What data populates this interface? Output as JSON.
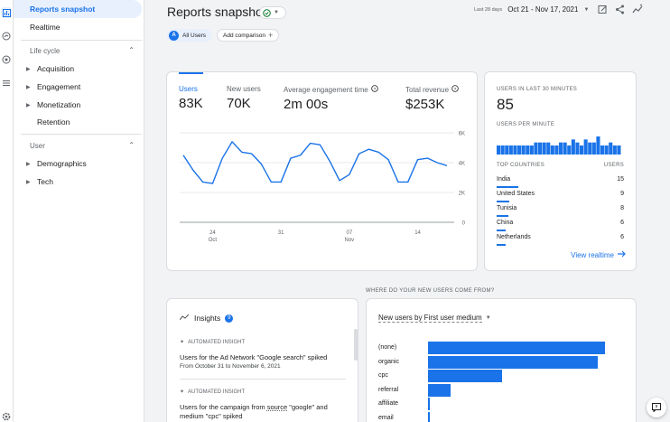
{
  "nav": {
    "reports_snapshot": "Reports snapshot",
    "realtime": "Realtime",
    "life_cycle": "Life cycle",
    "acquisition": "Acquisition",
    "engagement": "Engagement",
    "monetization": "Monetization",
    "retention": "Retention",
    "user": "User",
    "demographics": "Demographics",
    "tech": "Tech"
  },
  "header": {
    "title": "Reports snapshot",
    "date_label": "Last 28 days",
    "date_range": "Oct 21 - Nov 17, 2021"
  },
  "chips": {
    "avatar_letter": "A",
    "all_users": "All Users",
    "add_comparison": "Add comparison"
  },
  "metrics": [
    {
      "label": "Users",
      "value": "83K"
    },
    {
      "label": "New users",
      "value": "70K"
    },
    {
      "label": "Average engagement time",
      "value": "2m 00s"
    },
    {
      "label": "Total revenue",
      "value": "$253K"
    }
  ],
  "chart_data": {
    "type": "line",
    "x": [
      "Oct 21",
      "Oct 22",
      "Oct 23",
      "Oct 24",
      "Oct 25",
      "Oct 26",
      "Oct 27",
      "Oct 28",
      "Oct 29",
      "Oct 30",
      "Oct 31",
      "Nov 1",
      "Nov 2",
      "Nov 3",
      "Nov 4",
      "Nov 5",
      "Nov 6",
      "Nov 7",
      "Nov 8",
      "Nov 9",
      "Nov 10",
      "Nov 11",
      "Nov 12",
      "Nov 13",
      "Nov 14",
      "Nov 15",
      "Nov 16",
      "Nov 17"
    ],
    "series": [
      {
        "values": [
          4500,
          3500,
          2700,
          2600,
          4300,
          5400,
          4700,
          4600,
          3900,
          2700,
          2700,
          4300,
          4500,
          5300,
          5200,
          4100,
          2800,
          3200,
          4600,
          4900,
          4700,
          4200,
          2700,
          2700,
          4200,
          4300,
          4000,
          3800
        ]
      }
    ],
    "y_ticks": [
      "6K",
      "4K",
      "2K",
      "0"
    ],
    "x_ticks": [
      {
        "day": "24",
        "month": "Oct"
      },
      {
        "day": "31",
        "month": ""
      },
      {
        "day": "07",
        "month": "Nov"
      },
      {
        "day": "14",
        "month": ""
      }
    ],
    "ylim": [
      0,
      6000
    ],
    "grid": true,
    "color": "#1a73e8"
  },
  "realtime": {
    "header": "USERS IN LAST 30 MINUTES",
    "value": "85",
    "per_minute_label": "USERS PER MINUTE",
    "per_minute": [
      3,
      3,
      3,
      3,
      3,
      3,
      3,
      3,
      3,
      4,
      4,
      4,
      4,
      3,
      3,
      4,
      4,
      3,
      5,
      4,
      3,
      5,
      4,
      4,
      6,
      3,
      3,
      4,
      3,
      3
    ],
    "countries_header": "TOP COUNTRIES",
    "users_header": "USERS",
    "countries": [
      {
        "name": "India",
        "users": "15",
        "share": 1.0
      },
      {
        "name": "United States",
        "users": "9",
        "share": 0.6
      },
      {
        "name": "Tunisia",
        "users": "8",
        "share": 0.53
      },
      {
        "name": "China",
        "users": "6",
        "share": 0.4
      },
      {
        "name": "Netherlands",
        "users": "6",
        "share": 0.4
      }
    ],
    "view_link": "View realtime"
  },
  "where_title": "WHERE DO YOUR NEW USERS COME FROM?",
  "insights": {
    "title": "Insights",
    "count": "9",
    "items": [
      {
        "tag": "AUTOMATED INSIGHT",
        "line1": "Users for the Ad Network \"Google search\" spiked",
        "line2": "",
        "date": "From October 31 to November 6, 2021"
      },
      {
        "tag": "AUTOMATED INSIGHT",
        "line1a": "Users for the campaign from ",
        "line1b": "source",
        "line1c": " \"google\" and",
        "line2": "medium \"cpc\" spiked"
      }
    ]
  },
  "new_users": {
    "dropdown": "New users by First user medium",
    "bars": [
      {
        "label": "(none)",
        "value": 1.0
      },
      {
        "label": "organic",
        "value": 0.96
      },
      {
        "label": "cpc",
        "value": 0.42
      },
      {
        "label": "referral",
        "value": 0.13
      },
      {
        "label": "affiliate",
        "value": 0.01
      },
      {
        "label": "email",
        "value": 0.005
      }
    ]
  }
}
